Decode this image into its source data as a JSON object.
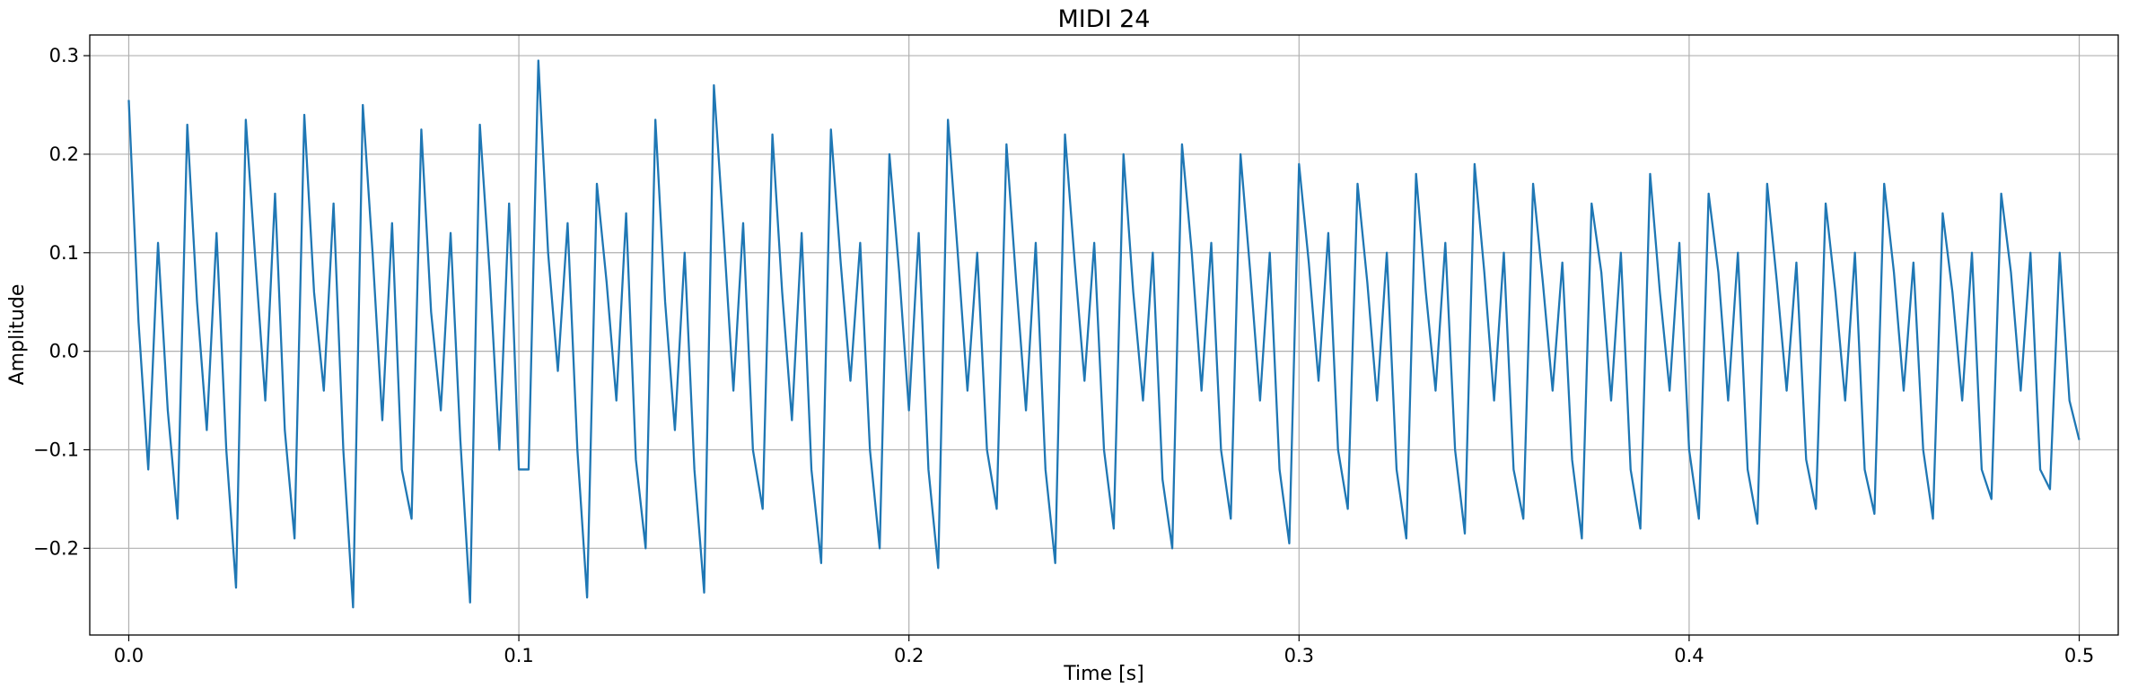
{
  "chart_data": {
    "type": "line",
    "title": "MIDI 24",
    "x_label": "Time [s]",
    "y_label": "Amplitude",
    "color": "#1f77b4",
    "grid": true,
    "xlim": [
      -0.01,
      0.51
    ],
    "ylim": [
      -0.288,
      0.321
    ],
    "xticks": [
      {
        "value": 0,
        "label": "0.0"
      },
      0.1,
      0.2,
      0.3,
      0.4,
      0.5
    ],
    "yticks": [
      {
        "value": -0.2,
        "label": "−0.2"
      },
      {
        "value": -0.1,
        "label": "−0.1"
      },
      {
        "value": 0,
        "label": "0.0"
      },
      0.1,
      0.2,
      0.3
    ],
    "x": [
      0,
      0.0025,
      0.005,
      0.0075,
      0.01,
      0.0125,
      0.015,
      0.0175,
      0.02,
      0.0225,
      0.025,
      0.0275,
      0.03,
      0.0325,
      0.035,
      0.0375,
      0.04,
      0.0425,
      0.045,
      0.0475,
      0.05,
      0.0525,
      0.055,
      0.0575,
      0.06,
      0.0625,
      0.065,
      0.0675,
      0.07,
      0.0725,
      0.075,
      0.0775,
      0.08,
      0.0825,
      0.085,
      0.0875,
      0.09,
      0.0925,
      0.095,
      0.0975,
      0.1,
      0.1025,
      0.105,
      0.1075,
      0.11,
      0.1125,
      0.115,
      0.1175,
      0.12,
      0.1225,
      0.125,
      0.1275,
      0.13,
      0.1325,
      0.135,
      0.1375,
      0.14,
      0.1425,
      0.145,
      0.1475,
      0.15,
      0.1525,
      0.155,
      0.1575,
      0.16,
      0.1625,
      0.165,
      0.1675,
      0.17,
      0.1725,
      0.175,
      0.1775,
      0.18,
      0.1825,
      0.185,
      0.1875,
      0.19,
      0.1925,
      0.195,
      0.1975,
      0.2,
      0.2025,
      0.205,
      0.2075,
      0.21,
      0.2125,
      0.215,
      0.2175,
      0.22,
      0.2225,
      0.225,
      0.2275,
      0.23,
      0.2325,
      0.235,
      0.2375,
      0.24,
      0.2425,
      0.245,
      0.2475,
      0.25,
      0.2525,
      0.255,
      0.2575,
      0.26,
      0.2625,
      0.265,
      0.2675,
      0.27,
      0.2725,
      0.275,
      0.2775,
      0.28,
      0.2825,
      0.285,
      0.2875,
      0.29,
      0.2925,
      0.295,
      0.2975,
      0.3,
      0.3025,
      0.305,
      0.3075,
      0.31,
      0.3125,
      0.315,
      0.3175,
      0.32,
      0.3225,
      0.325,
      0.3275,
      0.33,
      0.3325,
      0.335,
      0.3375,
      0.34,
      0.3425,
      0.345,
      0.3475,
      0.35,
      0.3525,
      0.355,
      0.3575,
      0.36,
      0.3625,
      0.365,
      0.3675,
      0.37,
      0.3725,
      0.375,
      0.3775,
      0.38,
      0.3825,
      0.385,
      0.3875,
      0.39,
      0.3925,
      0.395,
      0.3975,
      0.4,
      0.4025,
      0.405,
      0.4075,
      0.41,
      0.4125,
      0.415,
      0.4175,
      0.42,
      0.4225,
      0.425,
      0.4275,
      0.43,
      0.4325,
      0.435,
      0.4375,
      0.44,
      0.4425,
      0.445,
      0.4475,
      0.45,
      0.4525,
      0.455,
      0.4575,
      0.46,
      0.4625,
      0.465,
      0.4675,
      0.47,
      0.4725,
      0.475,
      0.4775,
      0.48,
      0.4825,
      0.485,
      0.4875,
      0.49,
      0.4925,
      0.495,
      0.4975,
      0.5
    ],
    "values": [
      0.255,
      0.03,
      -0.12,
      0.11,
      -0.06,
      -0.17,
      0.23,
      0.05,
      -0.08,
      0.12,
      -0.1,
      -0.24,
      0.235,
      0.09,
      -0.05,
      0.16,
      -0.08,
      -0.19,
      0.24,
      0.06,
      -0.04,
      0.15,
      -0.1,
      -0.26,
      0.25,
      0.1,
      -0.07,
      0.13,
      -0.12,
      -0.17,
      0.225,
      0.04,
      -0.06,
      0.12,
      -0.09,
      -0.255,
      0.23,
      0.08,
      -0.1,
      0.15,
      -0.12,
      -0.12,
      0.295,
      0.1,
      -0.02,
      0.13,
      -0.1,
      -0.25,
      0.17,
      0.07,
      -0.05,
      0.14,
      -0.11,
      -0.2,
      0.235,
      0.05,
      -0.08,
      0.1,
      -0.12,
      -0.245,
      0.27,
      0.12,
      -0.04,
      0.13,
      -0.1,
      -0.16,
      0.22,
      0.06,
      -0.07,
      0.12,
      -0.12,
      -0.215,
      0.225,
      0.09,
      -0.03,
      0.11,
      -0.1,
      -0.2,
      0.2,
      0.08,
      -0.06,
      0.12,
      -0.12,
      -0.22,
      0.235,
      0.1,
      -0.04,
      0.1,
      -0.1,
      -0.16,
      0.21,
      0.07,
      -0.06,
      0.11,
      -0.12,
      -0.215,
      0.22,
      0.09,
      -0.03,
      0.11,
      -0.1,
      -0.18,
      0.2,
      0.06,
      -0.05,
      0.1,
      -0.13,
      -0.2,
      0.21,
      0.1,
      -0.04,
      0.11,
      -0.1,
      -0.17,
      0.2,
      0.08,
      -0.05,
      0.1,
      -0.12,
      -0.195,
      0.19,
      0.09,
      -0.03,
      0.12,
      -0.1,
      -0.16,
      0.17,
      0.07,
      -0.05,
      0.1,
      -0.12,
      -0.19,
      0.18,
      0.06,
      -0.04,
      0.11,
      -0.1,
      -0.185,
      0.19,
      0.08,
      -0.05,
      0.1,
      -0.12,
      -0.17,
      0.17,
      0.07,
      -0.04,
      0.09,
      -0.11,
      -0.19,
      0.15,
      0.08,
      -0.05,
      0.1,
      -0.12,
      -0.18,
      0.18,
      0.06,
      -0.04,
      0.11,
      -0.1,
      -0.17,
      0.16,
      0.08,
      -0.05,
      0.1,
      -0.12,
      -0.175,
      0.17,
      0.07,
      -0.04,
      0.09,
      -0.11,
      -0.16,
      0.15,
      0.06,
      -0.05,
      0.1,
      -0.12,
      -0.165,
      0.17,
      0.08,
      -0.04,
      0.09,
      -0.1,
      -0.17,
      0.14,
      0.06,
      -0.05,
      0.1,
      -0.12,
      -0.15,
      0.16,
      0.08,
      -0.04,
      0.1,
      -0.12,
      -0.14,
      0.1,
      -0.05,
      -0.09
    ]
  }
}
